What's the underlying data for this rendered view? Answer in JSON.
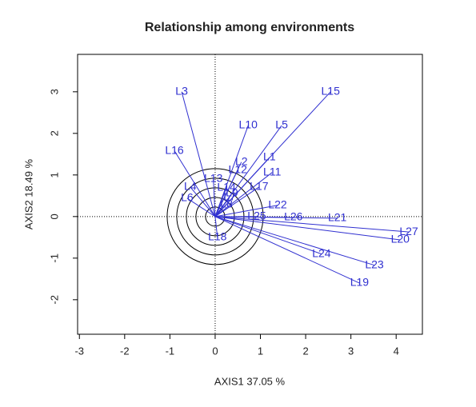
{
  "chart_data": {
    "type": "biplot",
    "title": "Relationship among environments",
    "x_label": "AXIS1 37.05 %",
    "y_label": "AXIS2 18.49 %",
    "xlim": [
      -3.04,
      4.58
    ],
    "ylim": [
      -2.83,
      3.9
    ],
    "xticks": [
      -3,
      -2,
      -1,
      0,
      1,
      2,
      3,
      4
    ],
    "yticks": [
      -2,
      -1,
      0,
      1,
      2,
      3
    ],
    "color": "#3030d0",
    "labels": [
      "L3",
      "L15",
      "L10",
      "L5",
      "L16",
      "L2",
      "L1",
      "L12",
      "L11",
      "L13",
      "L4",
      "L14",
      "L17",
      "L9",
      "L7",
      "L6",
      "L8",
      "L22",
      "L25",
      "L26",
      "L21",
      "L27",
      "L20",
      "L18",
      "L24",
      "L23",
      "L19"
    ],
    "x": [
      -0.74,
      2.55,
      0.73,
      1.47,
      -0.9,
      0.58,
      1.2,
      0.5,
      1.26,
      -0.04,
      -0.55,
      0.25,
      0.97,
      0.37,
      0.32,
      -0.62,
      0.25,
      1.38,
      0.92,
      1.73,
      2.7,
      4.28,
      4.09,
      0.05,
      2.35,
      3.52,
      3.19
    ],
    "y": [
      3.0,
      3.0,
      2.19,
      2.19,
      1.58,
      1.31,
      1.42,
      1.12,
      1.06,
      0.9,
      0.71,
      0.69,
      0.71,
      0.56,
      0.46,
      0.44,
      0.29,
      0.27,
      0.0,
      -0.02,
      -0.04,
      -0.37,
      -0.56,
      -0.5,
      -0.9,
      -1.17,
      -1.6
    ]
  }
}
